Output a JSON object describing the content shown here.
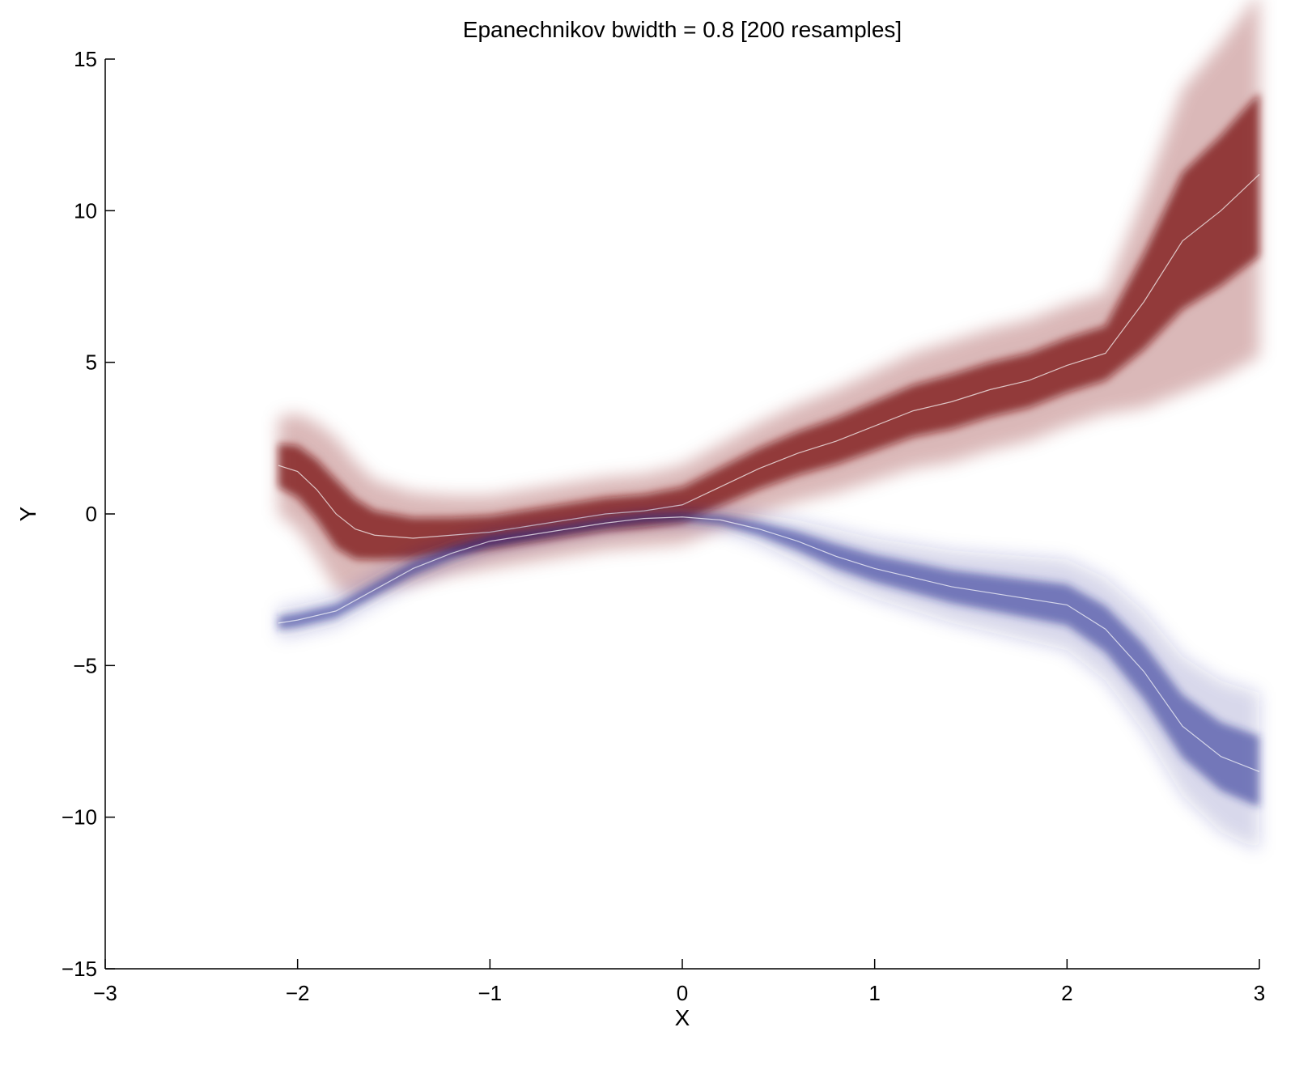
{
  "chart_data": {
    "type": "line",
    "title": "Epanechnikov bwidth = 0.8 [200 resamples]",
    "xlabel": "X",
    "ylabel": "Y",
    "xlim": [
      -3,
      3
    ],
    "ylim": [
      -15,
      15
    ],
    "xticks": [
      -3,
      -2,
      -1,
      0,
      1,
      2,
      3
    ],
    "xtick_labels": [
      "−3",
      "−2",
      "−1",
      "0",
      "1",
      "2",
      "3"
    ],
    "yticks": [
      15,
      10,
      5,
      0,
      -5,
      -10,
      -15
    ],
    "ytick_labels": [
      "15",
      "10",
      "5",
      "0",
      "−5",
      "−10",
      "−15"
    ],
    "grid": false,
    "legend": "none",
    "series": [
      {
        "color": "#7a0c0c",
        "x": [
          -2.1,
          -2.0,
          -1.9,
          -1.8,
          -1.7,
          -1.6,
          -1.4,
          -1.2,
          -1.0,
          -0.8,
          -0.6,
          -0.4,
          -0.2,
          0.0,
          0.2,
          0.4,
          0.6,
          0.8,
          1.0,
          1.2,
          1.4,
          1.6,
          1.8,
          2.0,
          2.2,
          2.4,
          2.6,
          2.8,
          3.0
        ],
        "y": [
          1.6,
          1.4,
          0.8,
          0.0,
          -0.5,
          -0.7,
          -0.8,
          -0.7,
          -0.6,
          -0.4,
          -0.2,
          0.0,
          0.1,
          0.3,
          0.9,
          1.5,
          2.0,
          2.4,
          2.9,
          3.4,
          3.7,
          4.1,
          4.4,
          4.9,
          5.3,
          7.0,
          9.0,
          10.0,
          11.2
        ],
        "band": [
          1.6,
          1.9,
          2.2,
          2.5,
          2.2,
          1.8,
          1.5,
          1.3,
          1.2,
          1.2,
          1.2,
          1.2,
          1.2,
          1.3,
          1.4,
          1.5,
          1.6,
          1.7,
          1.8,
          1.9,
          2.0,
          2.0,
          2.0,
          2.0,
          2.0,
          3.5,
          5.0,
          5.5,
          6.0
        ]
      },
      {
        "color": "#1f2a8f",
        "x": [
          -2.1,
          -2.0,
          -1.8,
          -1.6,
          -1.4,
          -1.2,
          -1.0,
          -0.8,
          -0.6,
          -0.4,
          -0.2,
          0.0,
          0.2,
          0.4,
          0.6,
          0.8,
          1.0,
          1.2,
          1.4,
          1.6,
          1.8,
          2.0,
          2.2,
          2.4,
          2.6,
          2.8,
          3.0
        ],
        "y": [
          -3.6,
          -3.5,
          -3.2,
          -2.5,
          -1.8,
          -1.3,
          -0.9,
          -0.7,
          -0.5,
          -0.3,
          -0.15,
          -0.1,
          -0.2,
          -0.5,
          -0.9,
          -1.4,
          -1.8,
          -2.1,
          -2.4,
          -2.6,
          -2.8,
          -3.0,
          -3.8,
          -5.2,
          -7.0,
          -8.0,
          -8.5
        ],
        "band": [
          0.5,
          0.5,
          0.5,
          0.5,
          0.5,
          0.45,
          0.4,
          0.35,
          0.3,
          0.3,
          0.3,
          0.3,
          0.35,
          0.5,
          0.7,
          0.9,
          1.0,
          1.1,
          1.2,
          1.3,
          1.4,
          1.5,
          1.7,
          2.0,
          2.3,
          2.5,
          2.6
        ]
      }
    ]
  }
}
